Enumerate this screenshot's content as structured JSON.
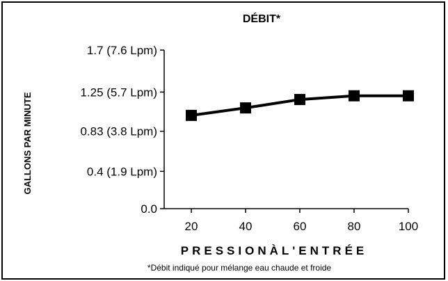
{
  "chart_data": {
    "type": "line",
    "title": "DÉBIT*",
    "xlabel": "PRESSIONÀL'ENTRÉE",
    "ylabel": "GALLONS PAR MINUTE",
    "footnote": "*Débit indiqué pour mélange eau chaude et froide",
    "x": [
      20,
      40,
      60,
      80,
      100
    ],
    "series": [
      {
        "values": [
          1.0,
          1.08,
          1.17,
          1.21,
          1.21
        ]
      }
    ],
    "xticks": [
      20,
      40,
      60,
      80,
      100
    ],
    "xtick_labels": [
      "20",
      "40",
      "60",
      "80",
      "100"
    ],
    "yticks": [
      0.0,
      0.4,
      0.83,
      1.25,
      1.7
    ],
    "ytick_labels": [
      "0.0",
      "0.4 (1.9 Lpm)",
      "0.83 (3.8 Lpm)",
      "1.25 (5.7 Lpm)",
      "1.7 (7.6 Lpm)"
    ],
    "xlim": [
      10,
      100
    ],
    "ylim": [
      0,
      1.7
    ],
    "grid": false,
    "marker": "square",
    "line_color": "#000000"
  }
}
